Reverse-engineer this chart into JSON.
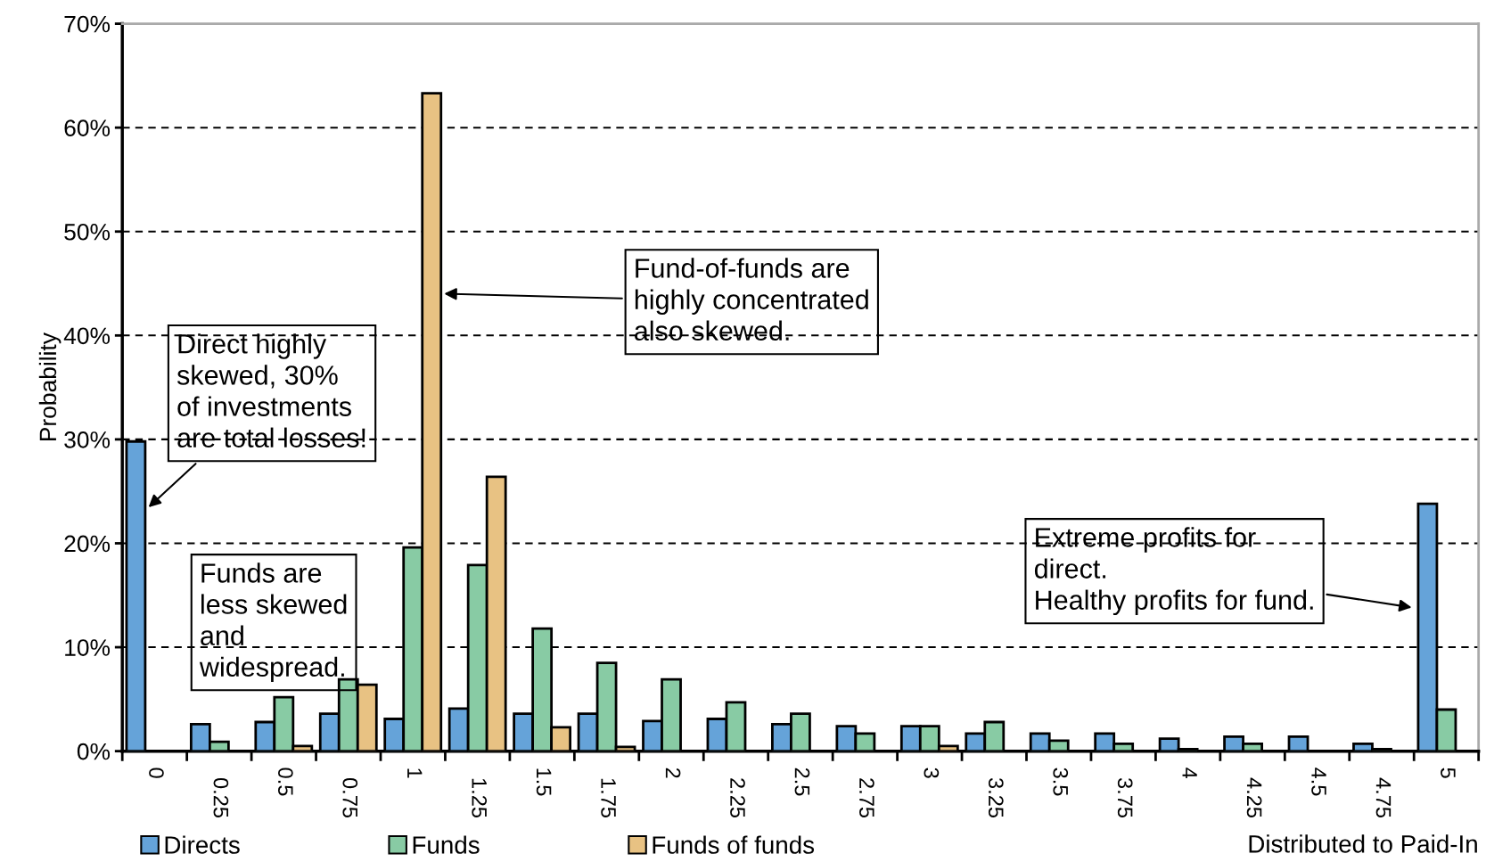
{
  "chart_data": {
    "type": "bar",
    "ylabel": "Probability",
    "xlabel": "Distributed to Paid-In",
    "categories": [
      "0",
      "0.25",
      "0.5",
      "0.75",
      "1",
      "1.25",
      "1.5",
      "1.75",
      "2",
      "2.25",
      "2.5",
      "2.75",
      "3",
      "3.25",
      "3.5",
      "3.75",
      "4",
      "4.25",
      "4.5",
      "4.75",
      "5"
    ],
    "series": [
      {
        "name": "Directs",
        "color": "#65a3d9",
        "values": [
          29.8,
          2.6,
          2.8,
          3.6,
          3.1,
          4.1,
          3.6,
          3.6,
          2.9,
          3.1,
          2.6,
          2.4,
          2.4,
          1.7,
          1.7,
          1.7,
          1.2,
          1.4,
          1.4,
          0.7,
          23.8
        ]
      },
      {
        "name": "Funds",
        "color": "#88cba4",
        "values": [
          null,
          0.9,
          5.2,
          6.9,
          19.6,
          17.9,
          11.8,
          8.5,
          6.9,
          4.7,
          3.6,
          1.7,
          2.4,
          2.8,
          1.0,
          0.7,
          0.2,
          0.7,
          null,
          0.2,
          4.0
        ]
      },
      {
        "name": "Funds of funds",
        "color": "#e8c283",
        "values": [
          null,
          null,
          0.5,
          6.4,
          63.3,
          26.4,
          2.3,
          0.4,
          null,
          null,
          null,
          null,
          0.5,
          null,
          null,
          null,
          null,
          null,
          null,
          null,
          null
        ]
      }
    ],
    "ylim": [
      0,
      70
    ],
    "yticks": [
      {
        "value": 0,
        "label": "0%"
      },
      {
        "value": 10,
        "label": "10%"
      },
      {
        "value": 20,
        "label": "20%"
      },
      {
        "value": 30,
        "label": "30%"
      },
      {
        "value": 40,
        "label": "40%"
      },
      {
        "value": 50,
        "label": "50%"
      },
      {
        "value": 60,
        "label": "60%"
      },
      {
        "value": 70,
        "label": "70%"
      }
    ],
    "grid": "y",
    "legend": "bottom left",
    "annotations": [
      "Direct highly\nskewed, 30%\nof investments\nare total losses!",
      "Funds are\nless skewed\nand\nwidespread.",
      "Fund-of-funds are\nhighly concentrated\nalso skewed.",
      "Extreme profits for\ndirect.\nHealthy profits for fund."
    ]
  }
}
